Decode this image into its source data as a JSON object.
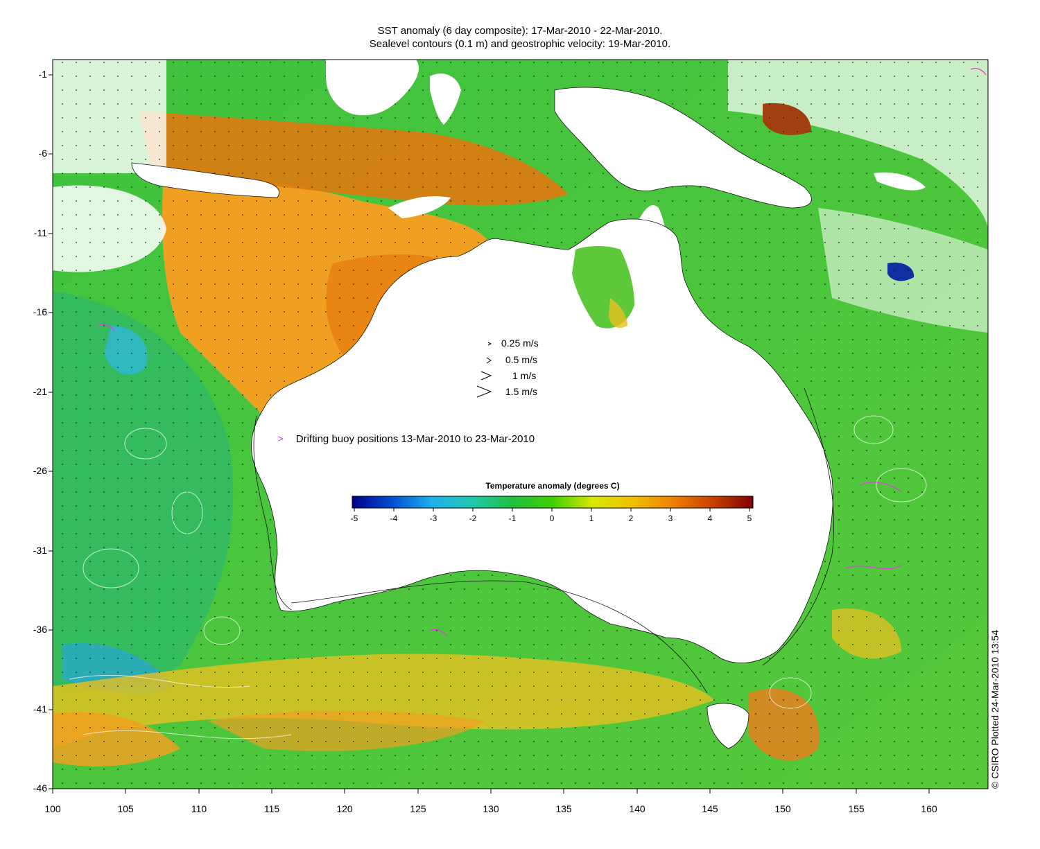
{
  "title_line1": "SST anomaly (6 day composite): 17-Mar-2010 - 22-Mar-2010.",
  "title_line2": "Sealevel contours (0.1 m) and geostrophic velocity: 19-Mar-2010.",
  "y_ticks": [
    "-1",
    "-6",
    "-11",
    "-16",
    "-21",
    "-26",
    "-31",
    "-36",
    "-41",
    "-46"
  ],
  "x_ticks": [
    "100",
    "105",
    "110",
    "115",
    "120",
    "125",
    "130",
    "135",
    "140",
    "145",
    "150",
    "155",
    "160"
  ],
  "velocity_legend": [
    {
      "arrow": ">",
      "label": "0.25 m/s"
    },
    {
      "arrow": ">",
      "label": "0.5 m/s"
    },
    {
      "arrow": ">",
      "label": "1 m/s"
    },
    {
      "arrow": ">",
      "label": "1.5 m/s"
    }
  ],
  "buoy_legend": {
    "marker": ">",
    "label": "Drifting buoy positions 13-Mar-2010 to 23-Mar-2010",
    "color": "#e040e0"
  },
  "colorbar": {
    "title": "Temperature anomaly (degrees C)",
    "ticks": [
      "-5",
      "-4",
      "-3",
      "-2",
      "-1",
      "0",
      "1",
      "2",
      "3",
      "4",
      "5"
    ],
    "colors": [
      "#00008b",
      "#0050d0",
      "#20b0f0",
      "#20c8b0",
      "#20c040",
      "#40d000",
      "#d8e800",
      "#f0c000",
      "#f08000",
      "#c84000",
      "#800000"
    ]
  },
  "credit": "© CSIRO Plotted 24-Mar-2010 13:54",
  "map": {
    "lon_range": [
      100,
      164
    ],
    "lat_range": [
      -46,
      -1
    ]
  }
}
